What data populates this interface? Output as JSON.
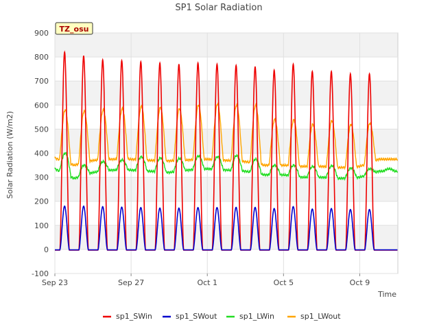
{
  "chart_data": {
    "type": "line",
    "title": "SP1 Solar Radiation",
    "xlabel": "Time",
    "ylabel": "Solar Radiation (W/m2)",
    "ylim": [
      -100,
      900
    ],
    "yticks": [
      -100,
      0,
      100,
      200,
      300,
      400,
      500,
      600,
      700,
      800,
      900
    ],
    "xlim": [
      "2023-09-23",
      "2023-10-11"
    ],
    "xticks": [
      {
        "date": "2023-09-23",
        "label": "Sep 23"
      },
      {
        "date": "2023-09-27",
        "label": "Sep 27"
      },
      {
        "date": "2023-10-01",
        "label": "Oct 1"
      },
      {
        "date": "2023-10-05",
        "label": "Oct 5"
      },
      {
        "date": "2023-10-09",
        "label": "Oct 9"
      }
    ],
    "grid": true,
    "legend_position": "bottom",
    "station_badge": "TZ_osu",
    "daily_peaks": {
      "dates": [
        "2023-09-23",
        "2023-09-24",
        "2023-09-25",
        "2023-09-26",
        "2023-09-27",
        "2023-09-28",
        "2023-09-29",
        "2023-09-30",
        "2023-10-01",
        "2023-10-02",
        "2023-10-03",
        "2023-10-04",
        "2023-10-05",
        "2023-10-06",
        "2023-10-07",
        "2023-10-08",
        "2023-10-09",
        "2023-10-10"
      ],
      "series": [
        {
          "name": "sp1_SWin",
          "color": "#ee0000",
          "values": [
            820,
            805,
            788,
            785,
            780,
            775,
            770,
            775,
            770,
            765,
            760,
            745,
            770,
            740,
            740,
            730,
            730,
            null
          ]
        },
        {
          "name": "sp1_SWout",
          "color": "#0000cc",
          "values": [
            180,
            180,
            178,
            176,
            174,
            172,
            172,
            174,
            174,
            175,
            175,
            170,
            178,
            168,
            170,
            166,
            166,
            null
          ]
        },
        {
          "name": "sp1_LWin",
          "color": "#22dd22",
          "values": [
            400,
            350,
            365,
            372,
            385,
            380,
            378,
            388,
            385,
            390,
            375,
            350,
            350,
            345,
            348,
            338,
            335,
            335
          ]
        },
        {
          "name": "sp1_LWout",
          "color": "#ffa500",
          "values": [
            580,
            575,
            580,
            585,
            595,
            590,
            585,
            600,
            605,
            600,
            600,
            540,
            538,
            520,
            535,
            520,
            525,
            null
          ]
        }
      ]
    },
    "night_baselines": {
      "sp1_SWin": -3,
      "sp1_SWout": -2,
      "sp1_LWin": [
        335,
        295,
        320,
        330,
        330,
        325,
        320,
        330,
        335,
        330,
        325,
        310,
        310,
        300,
        300,
        295,
        300,
        325
      ],
      "sp1_LWout": [
        380,
        350,
        370,
        375,
        375,
        370,
        368,
        372,
        375,
        370,
        365,
        350,
        350,
        345,
        345,
        340,
        345,
        375
      ]
    }
  }
}
